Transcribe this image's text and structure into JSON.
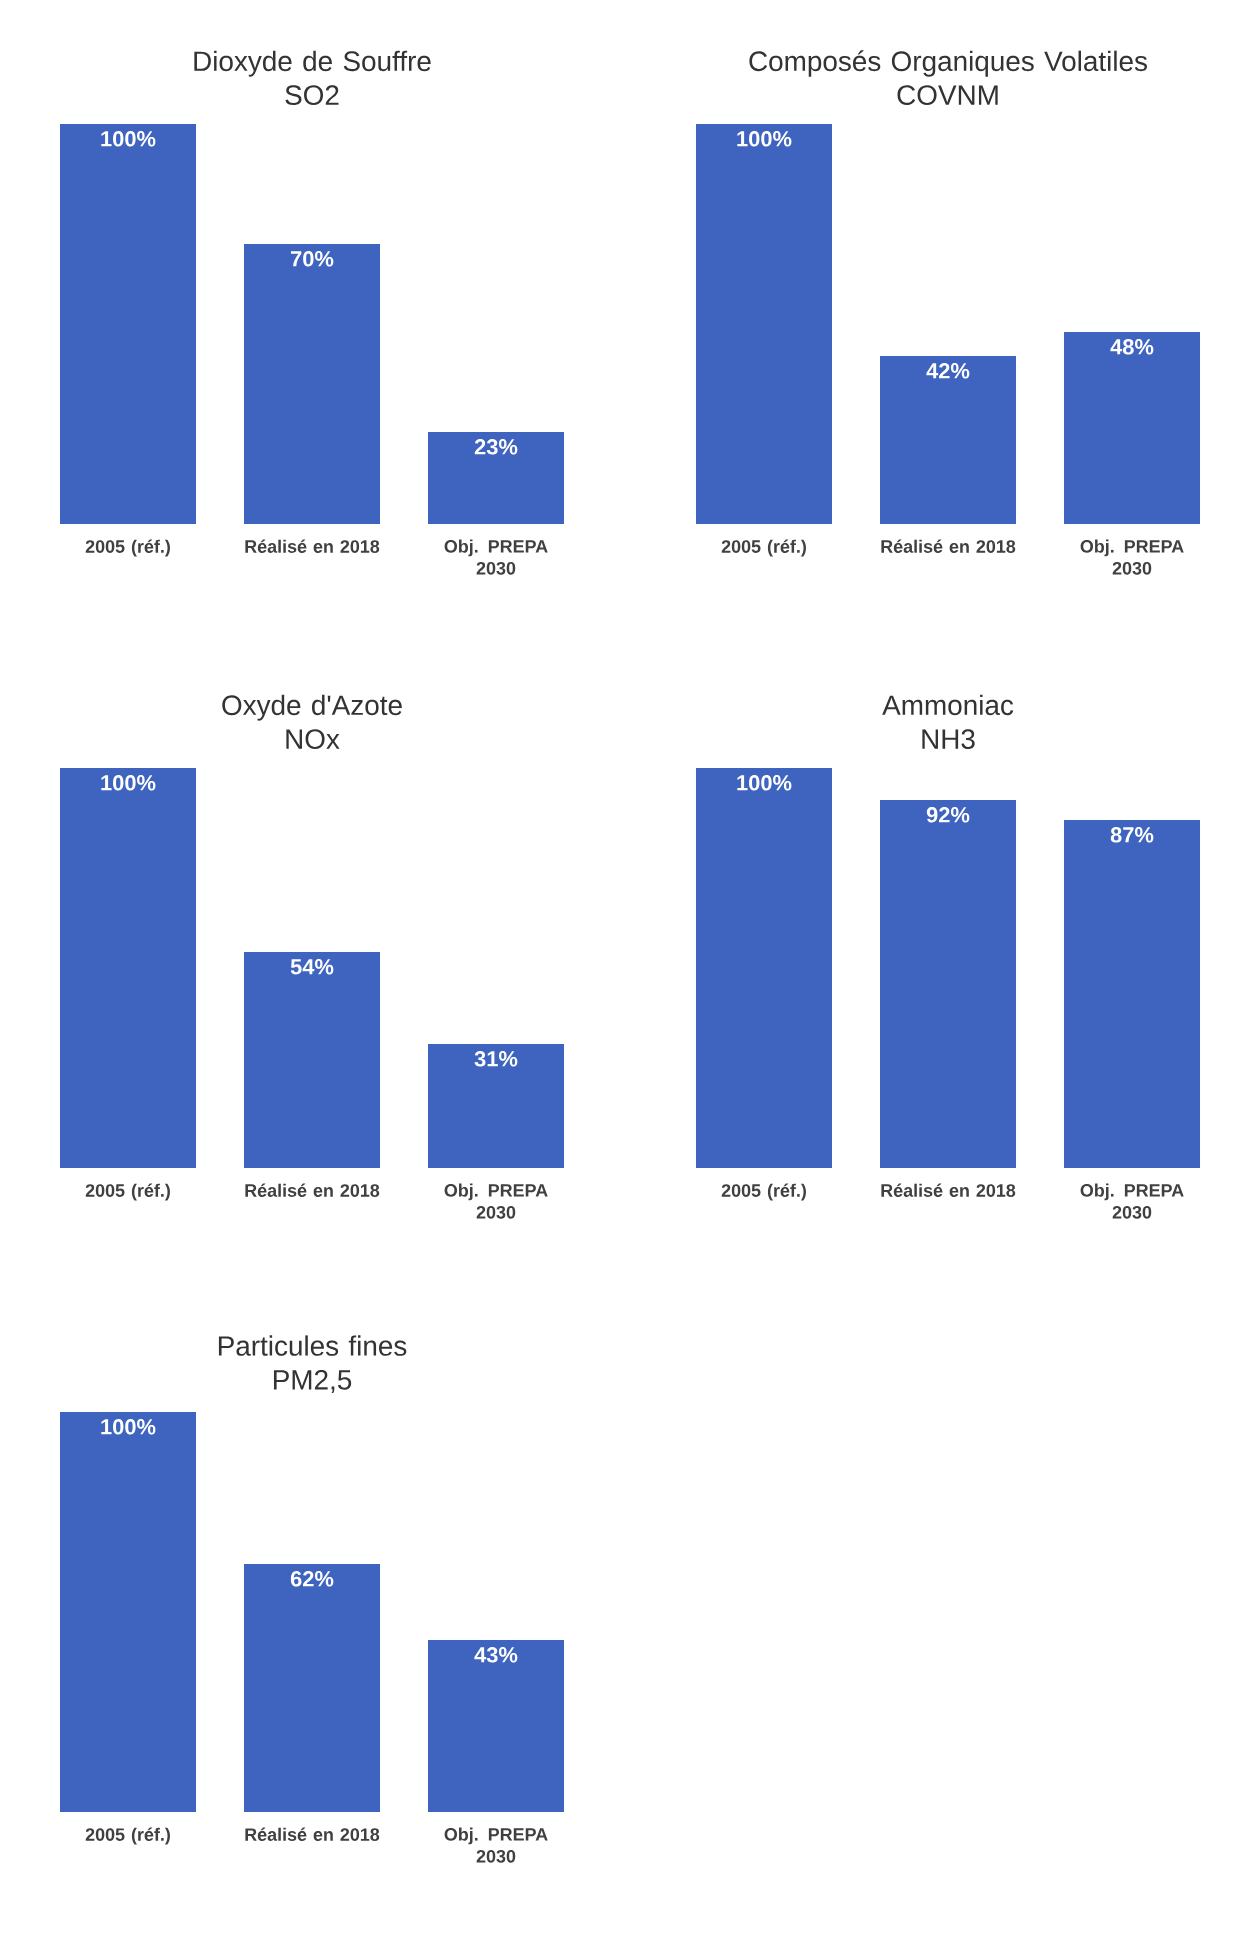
{
  "chart_data": [
    {
      "type": "bar",
      "title": "Dioxyde de Souffre",
      "subtitle": "SO2",
      "categories": [
        "2005 (réf.)",
        "Réalisé en 2018",
        "Obj. PREPA 2030"
      ],
      "values": [
        100,
        70,
        23
      ],
      "value_labels": [
        "100%",
        "70%",
        "23%"
      ],
      "color": "#3e64c0"
    },
    {
      "type": "bar",
      "title": "Composés Organiques Volatiles",
      "subtitle": "COVNM",
      "categories": [
        "2005 (réf.)",
        "Réalisé en 2018",
        "Obj. PREPA 2030"
      ],
      "values": [
        100,
        42,
        48
      ],
      "value_labels": [
        "100%",
        "42%",
        "48%"
      ],
      "color": "#3e64c0"
    },
    {
      "type": "bar",
      "title": "Oxyde d'Azote",
      "subtitle": "NOx",
      "categories": [
        "2005 (réf.)",
        "Réalisé en 2018",
        "Obj. PREPA 2030"
      ],
      "values": [
        100,
        54,
        31
      ],
      "value_labels": [
        "100%",
        "54%",
        "31%"
      ],
      "color": "#3e64c0"
    },
    {
      "type": "bar",
      "title": "Ammoniac",
      "subtitle": "NH3",
      "categories": [
        "2005 (réf.)",
        "Réalisé en 2018",
        "Obj. PREPA 2030"
      ],
      "values": [
        100,
        92,
        87
      ],
      "value_labels": [
        "100%",
        "92%",
        "87%"
      ],
      "color": "#3e64c0"
    },
    {
      "type": "bar",
      "title": "Particules fines",
      "subtitle": "PM2,5",
      "categories": [
        "2005 (réf.)",
        "Réalisé en 2018",
        "Obj. PREPA 2030"
      ],
      "values": [
        100,
        62,
        43
      ],
      "value_labels": [
        "100%",
        "62%",
        "43%"
      ],
      "color": "#3e64c0"
    }
  ]
}
